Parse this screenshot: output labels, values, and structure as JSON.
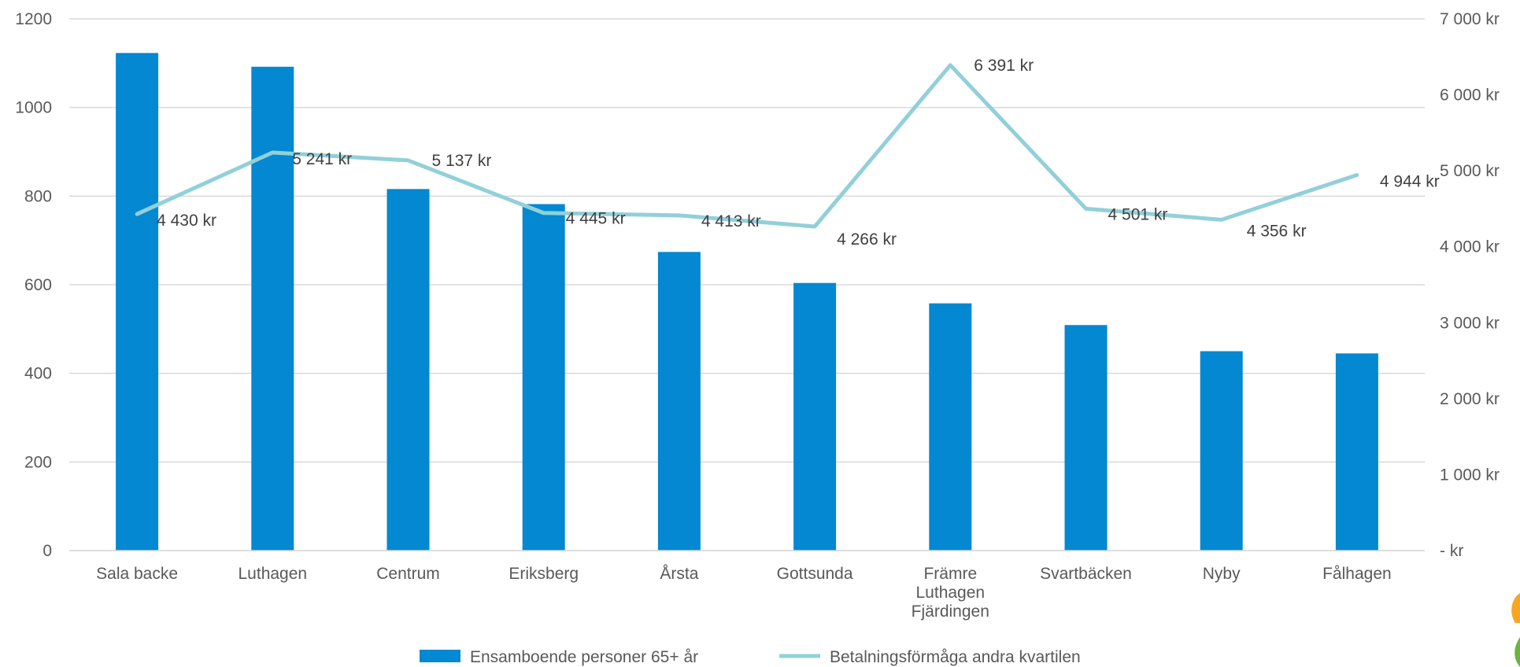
{
  "chart_data": {
    "type": "bar",
    "title": "",
    "categories": [
      "Sala backe",
      "Luthagen",
      "Centrum",
      "Eriksberg",
      "Årsta",
      "Gottsunda",
      "Främre Luthagen Fjärdingen",
      "Svartbäcken",
      "Nyby",
      "Fålhagen"
    ],
    "category_label_lines": [
      [
        "Sala backe"
      ],
      [
        "Luthagen"
      ],
      [
        "Centrum"
      ],
      [
        "Eriksberg"
      ],
      [
        "Årsta"
      ],
      [
        "Gottsunda"
      ],
      [
        "Främre",
        "Luthagen",
        "Fjärdingen"
      ],
      [
        "Svartbäcken"
      ],
      [
        "Nyby"
      ],
      [
        "Fålhagen"
      ]
    ],
    "series": [
      {
        "name": "Ensamboende personer 65+ år",
        "type": "bar",
        "axis": "left",
        "color": "#0388D1",
        "values": [
          1123,
          1092,
          816,
          782,
          674,
          604,
          558,
          509,
          450,
          445
        ]
      },
      {
        "name": "Betalningsförmåga andra kvartilen",
        "type": "line",
        "axis": "right",
        "color": "#92D0D9",
        "values": [
          4430,
          5241,
          5137,
          4445,
          4413,
          4266,
          6391,
          4501,
          4356,
          4944
        ],
        "data_labels": [
          "4 430 kr",
          "5 241 kr",
          "5 137 kr",
          "4 445 kr",
          "4 413 kr",
          "4 266 kr",
          "6 391 kr",
          "4 501 kr",
          "4 356 kr",
          "4 944 kr"
        ]
      }
    ],
    "y_left": {
      "ylim": [
        0,
        1200
      ],
      "ticks": [
        0,
        200,
        400,
        600,
        800,
        1000,
        1200
      ],
      "tick_labels": [
        "0",
        "200",
        "400",
        "600",
        "800",
        "1000",
        "1200"
      ]
    },
    "y_right": {
      "ylim": [
        0,
        7000
      ],
      "ticks": [
        0,
        1000,
        2000,
        3000,
        4000,
        5000,
        6000,
        7000
      ],
      "tick_labels": [
        "-   kr",
        "1 000 kr",
        "2 000 kr",
        "3 000 kr",
        "4 000 kr",
        "5 000 kr",
        "6 000 kr",
        "7 000 kr"
      ]
    },
    "grid": true,
    "legend": "bottom"
  }
}
